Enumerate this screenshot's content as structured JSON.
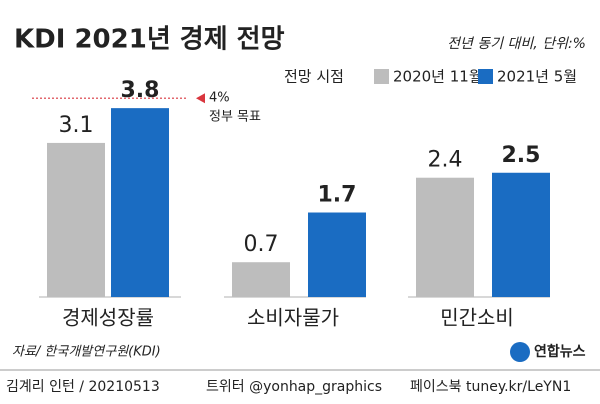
{
  "chart_data": {
    "type": "bar",
    "title": "KDI 2021년 경제 전망",
    "subtitle": "전년 동기 대비, 단위:%",
    "legend_title": "전망 시점",
    "categories": [
      "경제성장률",
      "소비자물가",
      "민간소비"
    ],
    "series": [
      {
        "name": "2020년 11월",
        "color": "#bdbdbd",
        "values": [
          3.1,
          0.7,
          2.4
        ]
      },
      {
        "name": "2021년 5월",
        "color": "#1a6cc2",
        "values": [
          3.8,
          1.7,
          2.5
        ]
      }
    ],
    "target": {
      "value": 4,
      "label": "4%",
      "text": "정부 목표"
    },
    "source": "자료/ 한국개발연구원(KDI)"
  },
  "footer": {
    "logo": "연합뉴스",
    "credit": "김계리 인턴 / 20210513",
    "twitter": "트위터 @yonhap_graphics",
    "facebook": "페이스북 tuney.kr/LeYN1"
  }
}
